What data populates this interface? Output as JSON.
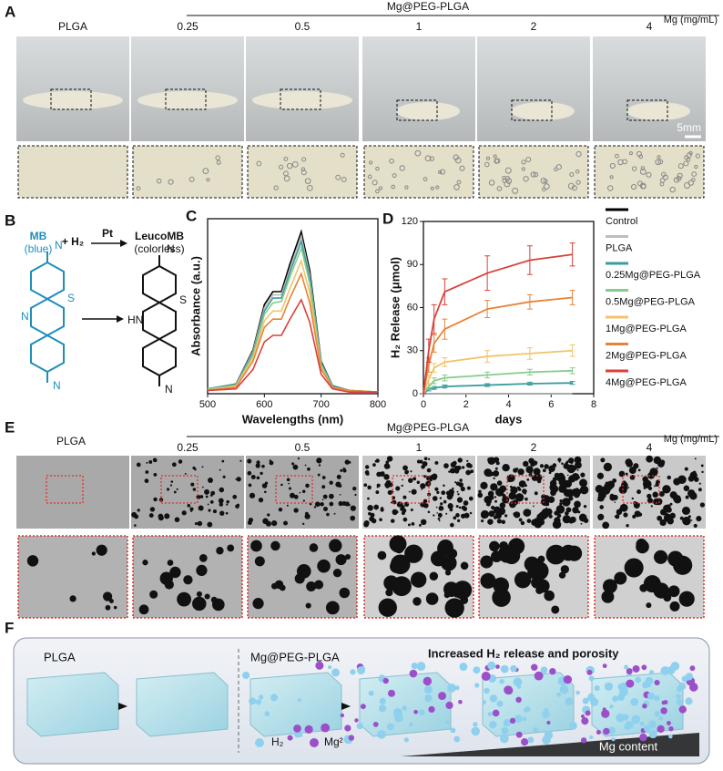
{
  "panels": {
    "A": {
      "label": "A",
      "first": "PLGA",
      "group": "Mg@PEG-PLGA",
      "unit": "Mg (mg/mL)",
      "concentrations": [
        "0.25",
        "0.5",
        "1",
        "2",
        "4"
      ],
      "scale": "5mm"
    },
    "B": {
      "label": "B",
      "reactant": "MB",
      "reactant_note": "(blue)",
      "reagent": "+ H₂",
      "catalyst": "Pt",
      "product": "LeucoMB",
      "product_note": "(colorless)",
      "atoms": {
        "mb_n": "N",
        "mb_s": "S",
        "mb_n1": "N",
        "mb_n2": "N",
        "leuco_hn": "HN",
        "leuco_s": "S",
        "leuco_n1": "N",
        "leuco_n2": "N"
      }
    },
    "C": {
      "label": "C"
    },
    "D": {
      "label": "D"
    },
    "E": {
      "label": "E",
      "first": "PLGA",
      "group": "Mg@PEG-PLGA",
      "unit": "Mg (mg/mL)",
      "concentrations": [
        "0.25",
        "0.5",
        "1",
        "2",
        "4"
      ]
    },
    "F": {
      "label": "F",
      "left": "PLGA",
      "right": "Mg@PEG-PLGA",
      "heading": "Increased H₂ release and porosity",
      "key_h2": "H₂",
      "key_mg": "Mg²⁺",
      "gradient": "Mg content"
    }
  },
  "chart_data": [
    {
      "type": "line",
      "xlabel": "Wavelengths (nm)",
      "ylabel": "Absorbance (a.u.)",
      "x": [
        500,
        550,
        580,
        600,
        615,
        630,
        645,
        665,
        680,
        700,
        720,
        750,
        800
      ],
      "xlim": [
        500,
        800
      ],
      "xticks": [
        500,
        600,
        700,
        800
      ],
      "ylim": [
        0,
        1.08
      ],
      "series": [
        {
          "color": "#000000",
          "values": [
            0.03,
            0.06,
            0.27,
            0.55,
            0.63,
            0.63,
            0.8,
            1.0,
            0.76,
            0.2,
            0.05,
            0.02,
            0.01
          ]
        },
        {
          "color": "#bdbdbd",
          "values": [
            0.03,
            0.06,
            0.26,
            0.53,
            0.61,
            0.61,
            0.77,
            0.97,
            0.73,
            0.19,
            0.05,
            0.02,
            0.01
          ]
        },
        {
          "color": "#3a9c9c",
          "values": [
            0.03,
            0.06,
            0.25,
            0.51,
            0.59,
            0.59,
            0.75,
            0.94,
            0.71,
            0.19,
            0.05,
            0.02,
            0.01
          ]
        },
        {
          "color": "#86cc8f",
          "values": [
            0.03,
            0.05,
            0.24,
            0.49,
            0.56,
            0.57,
            0.72,
            0.9,
            0.68,
            0.18,
            0.04,
            0.02,
            0.01
          ]
        },
        {
          "color": "#f2c46a",
          "values": [
            0.02,
            0.05,
            0.22,
            0.45,
            0.51,
            0.51,
            0.65,
            0.82,
            0.62,
            0.16,
            0.04,
            0.02,
            0.01
          ]
        },
        {
          "color": "#e8833a",
          "values": [
            0.02,
            0.04,
            0.2,
            0.41,
            0.46,
            0.46,
            0.59,
            0.74,
            0.56,
            0.15,
            0.04,
            0.02,
            0.01
          ]
        },
        {
          "color": "#d9413a",
          "values": [
            0.02,
            0.03,
            0.15,
            0.32,
            0.36,
            0.36,
            0.46,
            0.58,
            0.44,
            0.12,
            0.03,
            0.01,
            0.01
          ]
        }
      ]
    },
    {
      "type": "line",
      "xlabel": "days",
      "ylabel": "H₂ Release (μmol)",
      "x": [
        0,
        0.25,
        0.5,
        1,
        3,
        5,
        7
      ],
      "xlim": [
        0,
        8
      ],
      "xticks": [
        0,
        2,
        4,
        6,
        8
      ],
      "ylim": [
        0,
        120
      ],
      "yticks": [
        0,
        30,
        60,
        90,
        120
      ],
      "series": [
        {
          "name": "Control",
          "color": "#000000",
          "values": [
            0,
            0,
            0,
            0,
            0,
            0,
            0
          ]
        },
        {
          "name": "PLGA",
          "color": "#bdbdbd",
          "values": [
            0,
            0,
            0,
            0,
            0,
            0,
            0
          ]
        },
        {
          "name": "0.25Mg@PEG-PLGA",
          "color": "#3a9c9c",
          "values": [
            0,
            3,
            4,
            5,
            6,
            7,
            7.5
          ],
          "errors": [
            0,
            1,
            1,
            1,
            1,
            1,
            1
          ]
        },
        {
          "name": "0.5Mg@PEG-PLGA",
          "color": "#86cc8f",
          "values": [
            0,
            5,
            9,
            11,
            13,
            15,
            16
          ],
          "errors": [
            0,
            2,
            2,
            2,
            2,
            2,
            2
          ]
        },
        {
          "name": "1Mg@PEG-PLGA",
          "color": "#f2c46a",
          "values": [
            0,
            10,
            18,
            22,
            26,
            28,
            30
          ],
          "errors": [
            0,
            3,
            3,
            3,
            4,
            4,
            4
          ]
        },
        {
          "name": "2Mg@PEG-PLGA",
          "color": "#e8833a",
          "values": [
            0,
            20,
            35,
            45,
            59,
            64,
            67
          ],
          "errors": [
            0,
            5,
            6,
            7,
            6,
            5,
            5
          ]
        },
        {
          "name": "4Mg@PEG-PLGA",
          "color": "#d9413a",
          "values": [
            0,
            30,
            52,
            71,
            84,
            93,
            97
          ],
          "errors": [
            0,
            8,
            10,
            9,
            12,
            10,
            8
          ]
        }
      ]
    }
  ]
}
